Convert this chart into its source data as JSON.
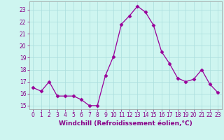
{
  "x": [
    0,
    1,
    2,
    3,
    4,
    5,
    6,
    7,
    8,
    9,
    10,
    11,
    12,
    13,
    14,
    15,
    16,
    17,
    18,
    19,
    20,
    21,
    22,
    23
  ],
  "y": [
    16.5,
    16.2,
    17.0,
    15.8,
    15.8,
    15.8,
    15.5,
    15.0,
    15.0,
    17.5,
    19.1,
    21.8,
    22.5,
    23.3,
    22.8,
    21.7,
    19.5,
    18.5,
    17.3,
    17.0,
    17.2,
    18.0,
    16.8,
    16.1
  ],
  "line_color": "#990099",
  "marker": "D",
  "marker_size": 2.5,
  "bg_color": "#cef5f0",
  "grid_color": "#aadddd",
  "xlabel": "Windchill (Refroidissement éolien,°C)",
  "xlim": [
    -0.5,
    23.5
  ],
  "ylim": [
    14.7,
    23.7
  ],
  "yticks": [
    15,
    16,
    17,
    18,
    19,
    20,
    21,
    22,
    23
  ],
  "xticks": [
    0,
    1,
    2,
    3,
    4,
    5,
    6,
    7,
    8,
    9,
    10,
    11,
    12,
    13,
    14,
    15,
    16,
    17,
    18,
    19,
    20,
    21,
    22,
    23
  ],
  "tick_fontsize": 5.5,
  "xlabel_fontsize": 6.5,
  "label_color": "#880088"
}
